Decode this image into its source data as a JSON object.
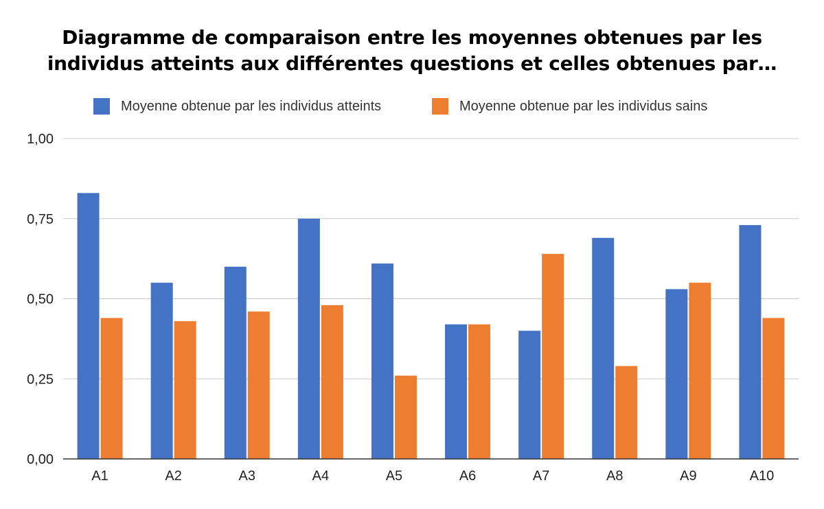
{
  "chart_data": {
    "type": "bar",
    "title_lines": [
      "Diagramme de comparaison entre les moyennes obtenues par les",
      "individus atteints aux différentes questions et celles obtenues par…"
    ],
    "categories": [
      "A1",
      "A2",
      "A3",
      "A4",
      "A5",
      "A6",
      "A7",
      "A8",
      "A9",
      "A10"
    ],
    "series": [
      {
        "name": "Moyenne obtenue par les individus atteints",
        "color": "#4472c4",
        "values": [
          0.83,
          0.55,
          0.6,
          0.75,
          0.61,
          0.42,
          0.4,
          0.69,
          0.53,
          0.73
        ]
      },
      {
        "name": "Moyenne obtenue par les individus sains",
        "color": "#ed7d31",
        "values": [
          0.44,
          0.43,
          0.46,
          0.48,
          0.26,
          0.42,
          0.64,
          0.29,
          0.55,
          0.44
        ]
      }
    ],
    "yticks": [
      "0,00",
      "0,25",
      "0,50",
      "0,75",
      "1,00"
    ],
    "ylim": [
      0,
      1
    ],
    "xlabel": "",
    "ylabel": "",
    "grid": true,
    "legend_position": "top"
  }
}
